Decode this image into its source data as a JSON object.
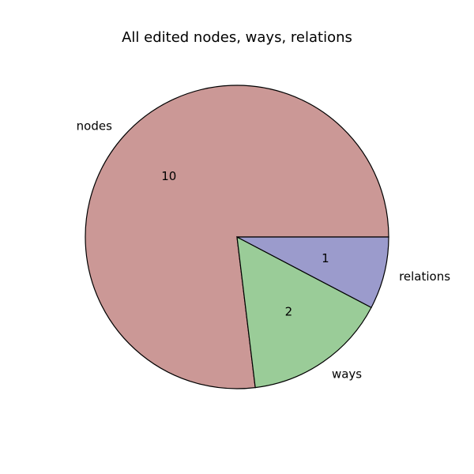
{
  "chart_data": {
    "type": "pie",
    "title": "All edited nodes, ways, relations",
    "categories": [
      "nodes",
      "ways",
      "relations"
    ],
    "values": [
      10,
      2,
      1
    ],
    "value_labels": [
      "10",
      "2",
      "1"
    ],
    "colors": [
      "#cb9896",
      "#9acc98",
      "#9b9bcc"
    ],
    "start_angle_deg": 0,
    "direction": "counterclockwise",
    "edge_color": "#000000",
    "legend": false
  }
}
